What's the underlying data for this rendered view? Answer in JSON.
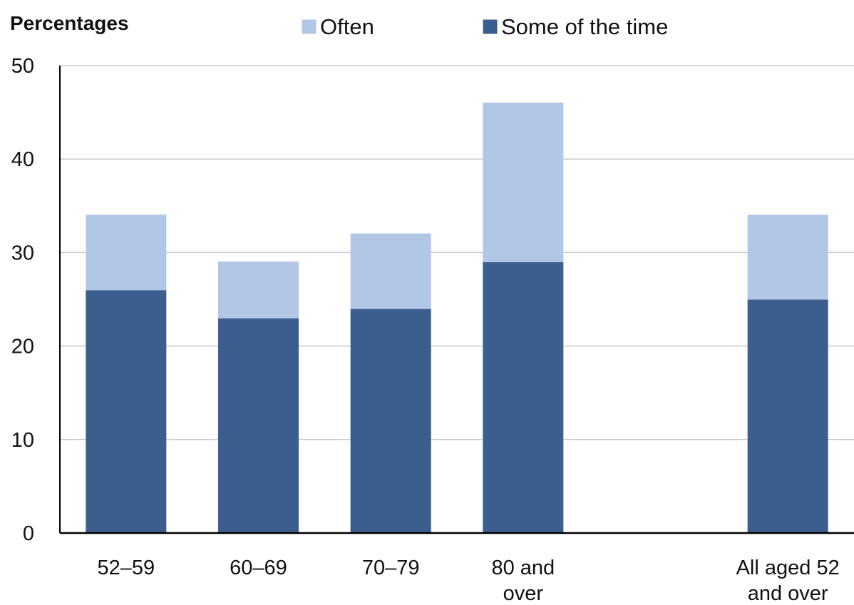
{
  "chart_data": {
    "type": "bar",
    "stacked": true,
    "title": "",
    "xlabel": "",
    "ylabel": "Percentages",
    "ylim": [
      0,
      50
    ],
    "yticks": [
      0,
      10,
      20,
      30,
      40,
      50
    ],
    "grid": true,
    "legend_position": "top",
    "categories": [
      [
        "52–59"
      ],
      [
        "60–69"
      ],
      [
        "70–79"
      ],
      [
        "80 and",
        "over"
      ],
      [],
      [
        "All aged 52",
        "and over"
      ]
    ],
    "series": [
      {
        "name": "Some of the time",
        "color": "#3b5e8e",
        "values": [
          26,
          23,
          24,
          29,
          null,
          25
        ]
      },
      {
        "name": "Often",
        "color": "#b2c7e6",
        "values": [
          8,
          6,
          8,
          17,
          null,
          9
        ]
      }
    ],
    "legend_order": [
      1,
      0
    ]
  }
}
